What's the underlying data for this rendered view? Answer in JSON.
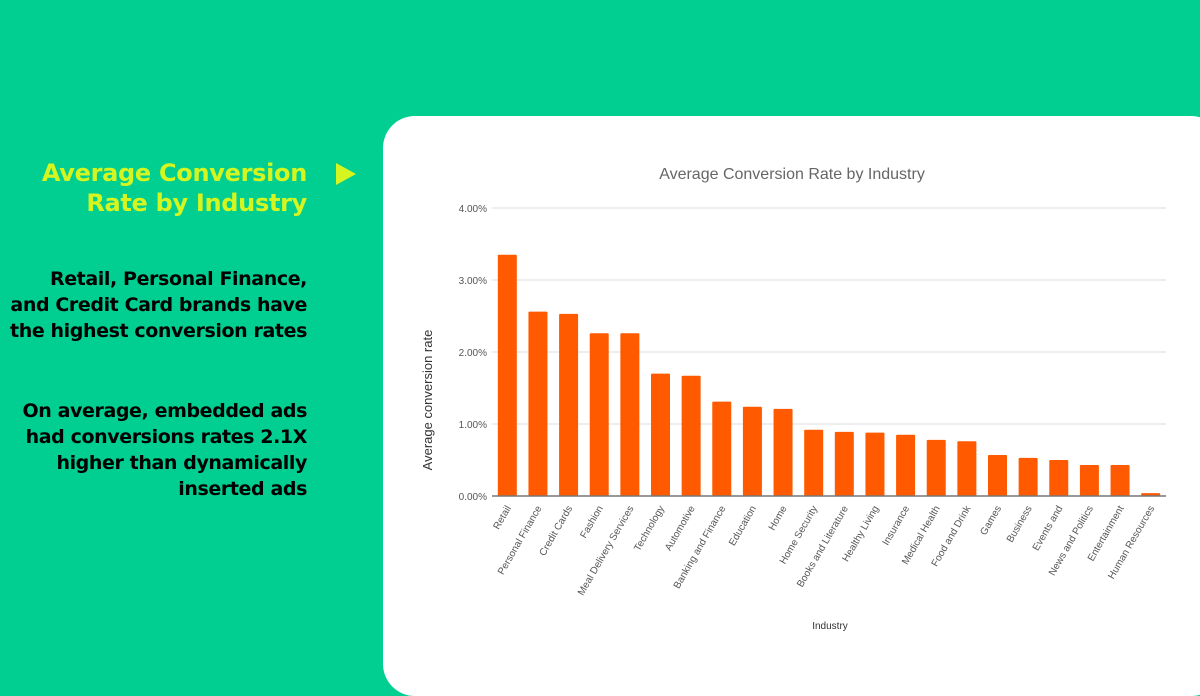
{
  "left_panel": {
    "headline": "Average Conversion Rate by Industry",
    "point_1": "Retail, Personal Finance, and Credit Card brands have the highest conversion rates",
    "point_2": "On average, embedded ads had conversions rates 2.1X higher than dynamically inserted ads",
    "arrow_icon": "play-triangle-icon"
  },
  "colors": {
    "background": "#00cf91",
    "headline": "#d4f51f",
    "bar": "#ff5a00"
  },
  "chart_data": {
    "type": "bar",
    "title": "Average Conversion Rate by Industry",
    "xlabel": "Industry",
    "ylabel": "Average conversion rate",
    "ylim": [
      0,
      4
    ],
    "yticks": [
      "0.00%",
      "1.00%",
      "2.00%",
      "3.00%",
      "4.00%"
    ],
    "grid": true,
    "categories": [
      "Retail",
      "Personal Finance",
      "Credit Cards",
      "Fashion",
      "Meal Delivery Services",
      "Technology",
      "Automotive",
      "Banking and Finance",
      "Education",
      "Home",
      "Home Security",
      "Books and Literature",
      "Healthy Living",
      "Insurance",
      "Medical Health",
      "Food and Drink",
      "Games",
      "Business",
      "Events and",
      "News and Politics",
      "Entertainment",
      "Human Resources"
    ],
    "values": [
      3.35,
      2.56,
      2.53,
      2.26,
      2.26,
      1.7,
      1.67,
      1.31,
      1.24,
      1.21,
      0.92,
      0.89,
      0.88,
      0.85,
      0.78,
      0.76,
      0.57,
      0.53,
      0.5,
      0.43,
      0.43,
      0.04
    ]
  }
}
